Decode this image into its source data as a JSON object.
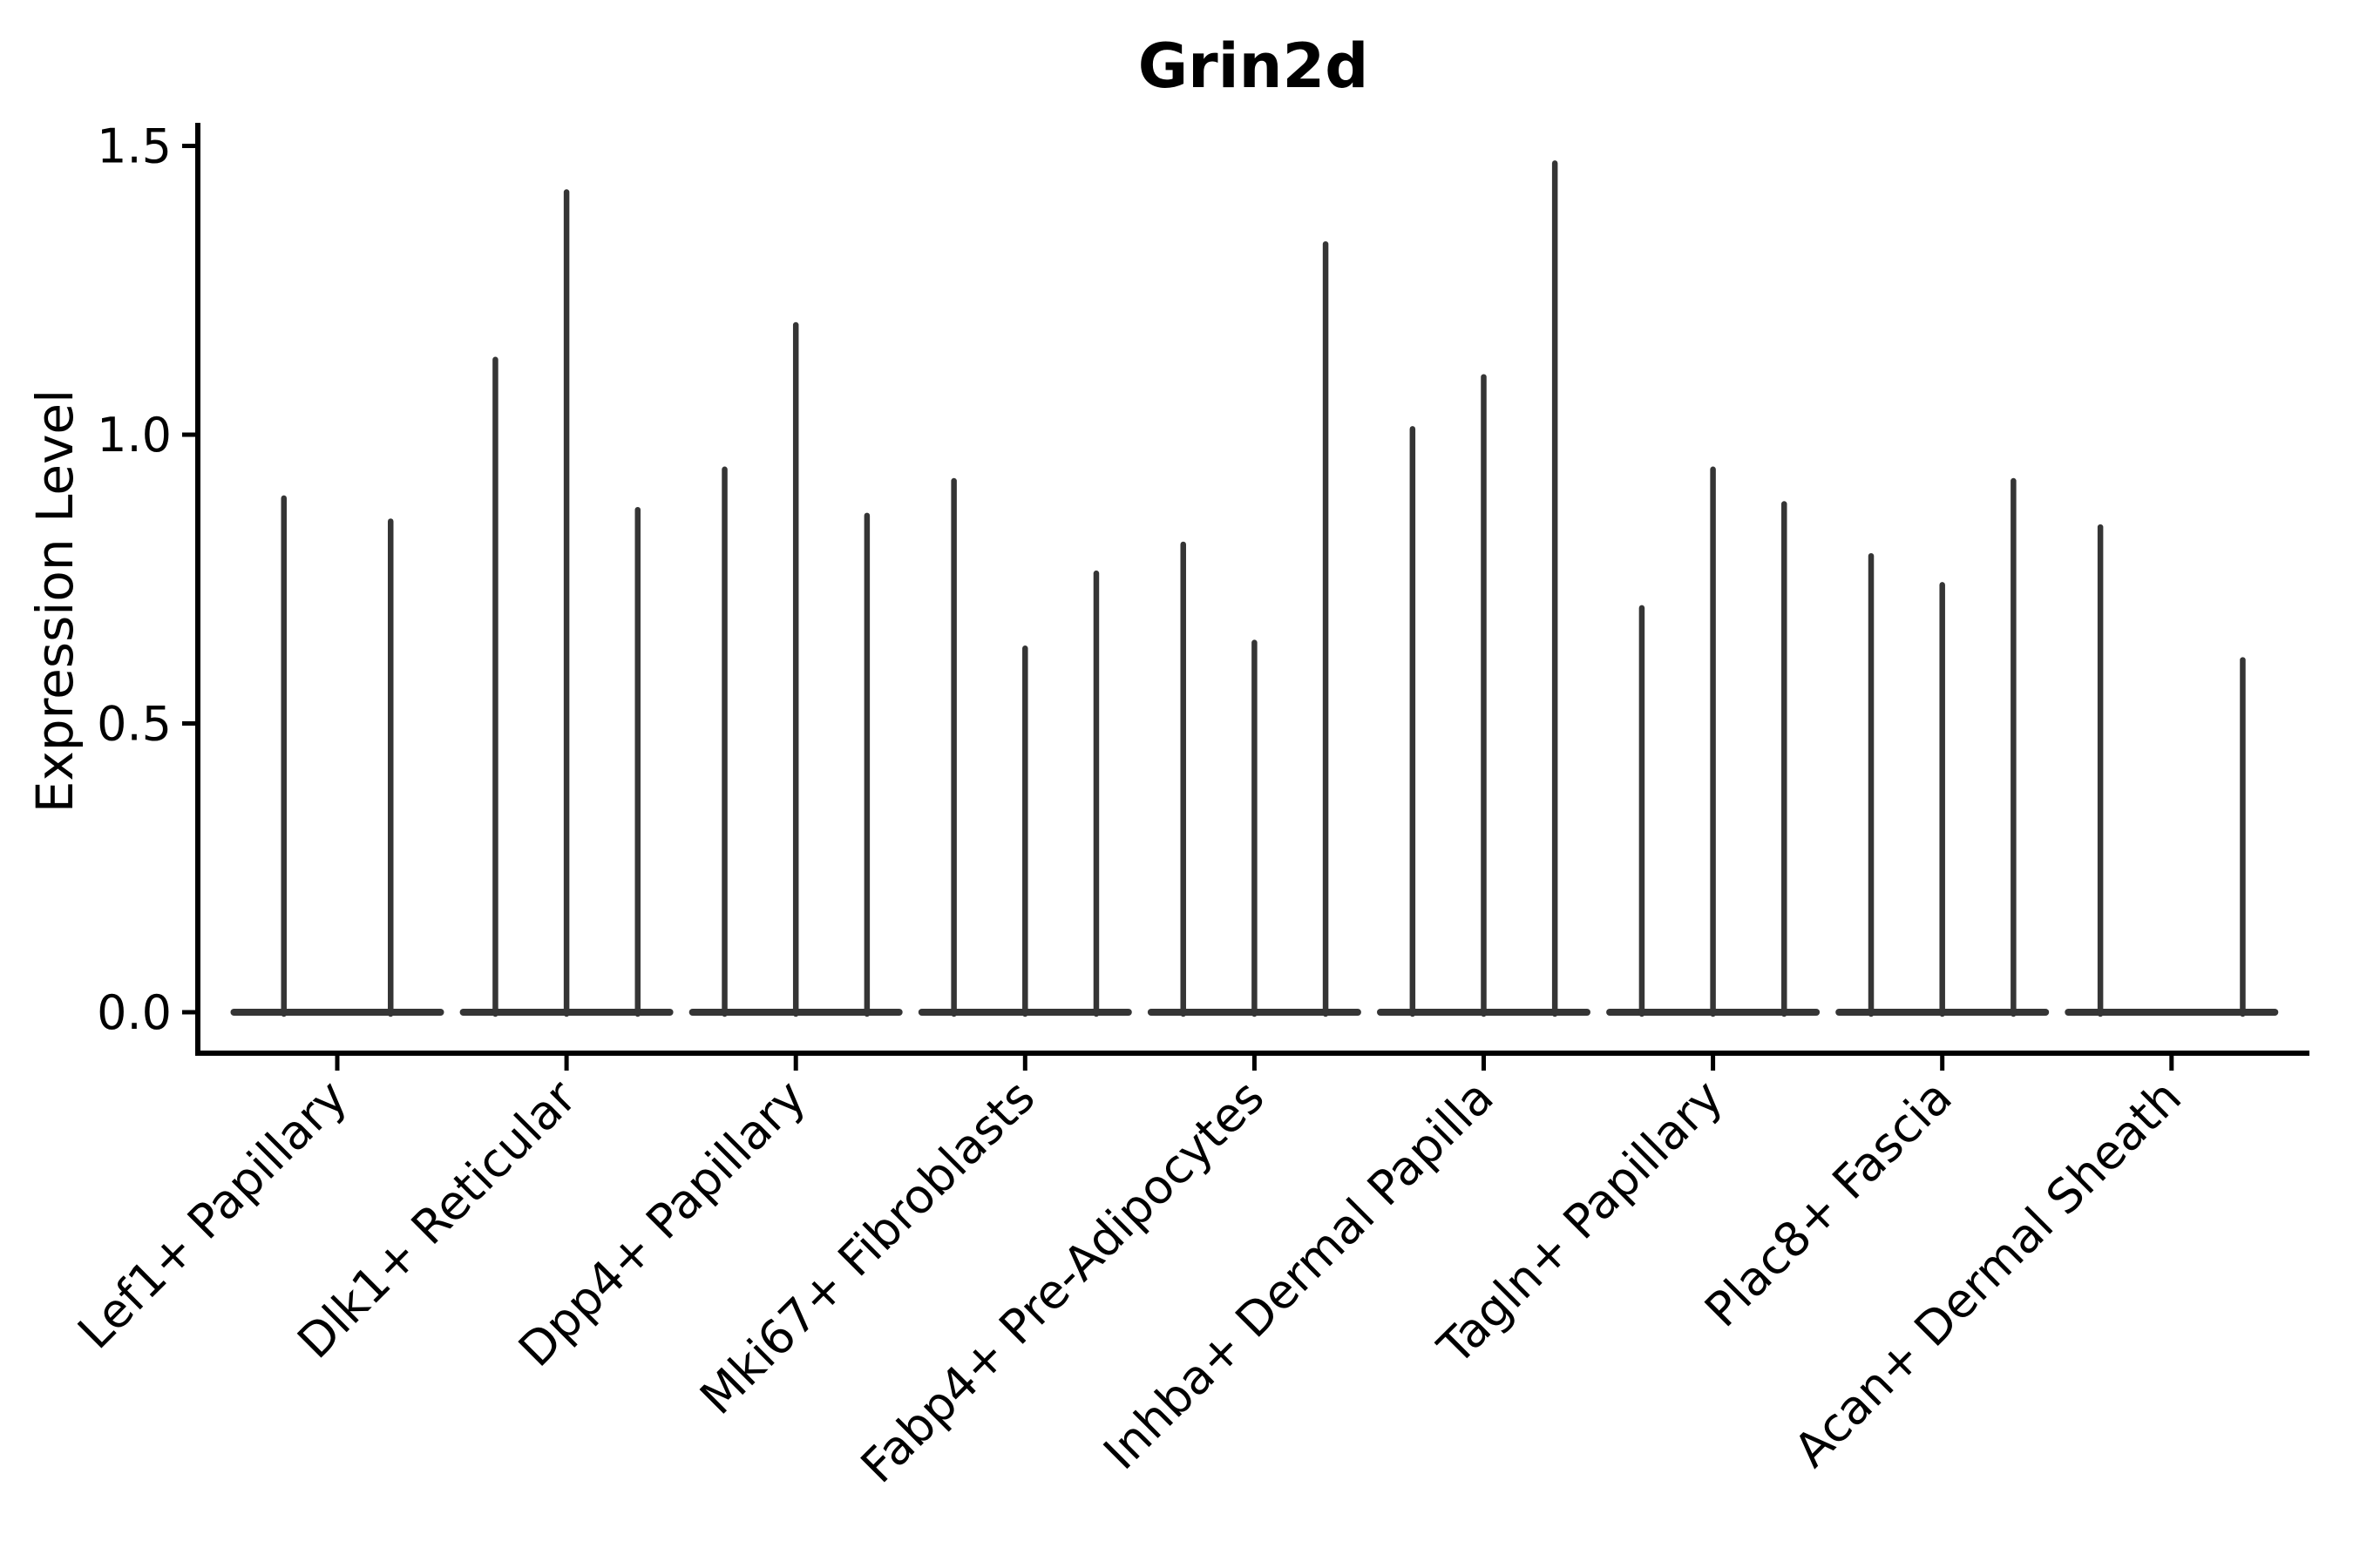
{
  "figure": {
    "title": "Grin2d",
    "ylabel": "Expression Level"
  },
  "chart_data": {
    "type": "violin",
    "title": "Grin2d",
    "xlabel": "",
    "ylabel": "Expression Level",
    "yticks": [
      0.0,
      0.5,
      1.0,
      1.5
    ],
    "ytick_labels": [
      "0.0",
      "0.5",
      "1.0",
      "1.5"
    ],
    "ylim": [
      -0.07,
      1.54
    ],
    "grid": false,
    "legend": null,
    "background_color": "#ffffff",
    "violin_color": "#353535",
    "axis_color": "#000000",
    "text_color": "#000000",
    "categories": [
      "Lef1+ Papillary",
      "Dlk1+ Reticular",
      "Dpp4+ Papillary",
      "Mki67+ Fibroblasts",
      "Fabp4+ Pre-Adipocytes",
      "Inhba+ Dermal Papilla",
      "Tagln+ Papillary",
      "Plac8+ Fascia",
      "Acan+ Dermal Sheath"
    ],
    "groups": [
      {
        "category": "Lef1+ Papillary",
        "violin_peaks": [
          0.89,
          0.85
        ]
      },
      {
        "category": "Dlk1+ Reticular",
        "violin_peaks": [
          1.13,
          1.42,
          0.87
        ]
      },
      {
        "category": "Dpp4+ Papillary",
        "violin_peaks": [
          0.94,
          1.19,
          0.86
        ]
      },
      {
        "category": "Mki67+ Fibroblasts",
        "violin_peaks": [
          0.92,
          0.63,
          0.76
        ]
      },
      {
        "category": "Fabp4+ Pre-Adipocytes",
        "violin_peaks": [
          0.81,
          0.64,
          1.33
        ]
      },
      {
        "category": "Inhba+ Dermal Papilla",
        "violin_peaks": [
          1.01,
          1.1,
          1.47
        ]
      },
      {
        "category": "Tagln+ Papillary",
        "violin_peaks": [
          0.7,
          0.94,
          0.88
        ]
      },
      {
        "category": "Plac8+ Fascia",
        "violin_peaks": [
          0.79,
          0.74,
          0.92
        ]
      },
      {
        "category": "Acan+ Dermal Sheath",
        "violin_peaks": [
          0.84,
          0.0,
          0.61
        ]
      }
    ],
    "violin_baseline_value": 0.0,
    "x_tick_rotation_deg": 45
  }
}
